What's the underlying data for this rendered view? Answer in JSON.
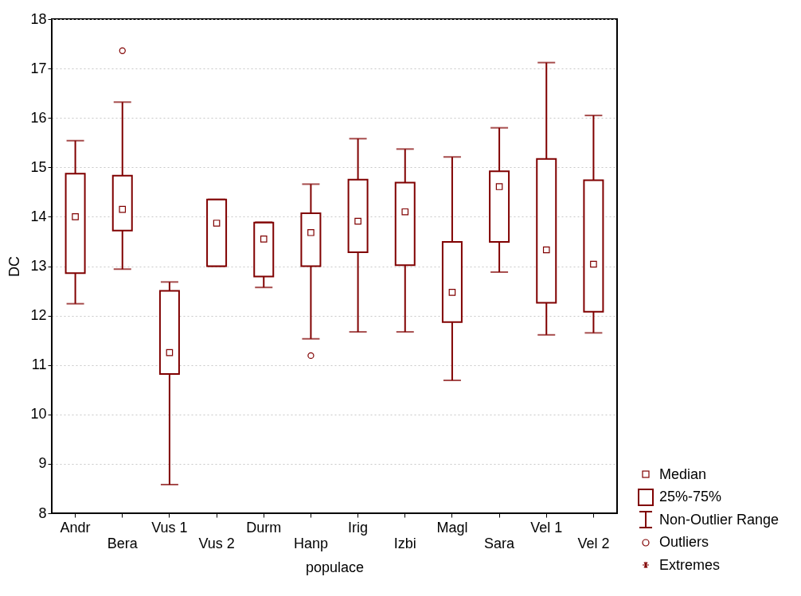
{
  "chart_data": {
    "type": "box",
    "xlabel": "populace",
    "ylabel": "DC",
    "categories": [
      "Andr",
      "Bera",
      "Vus 1",
      "Vus 2",
      "Durm",
      "Hanp",
      "Irig",
      "Izbi",
      "Magl",
      "Sara",
      "Vel 1",
      "Vel 2"
    ],
    "color": "#800000",
    "ylim": [
      8,
      18
    ],
    "yticks": [
      8,
      9,
      10,
      11,
      12,
      13,
      14,
      15,
      16,
      17,
      18
    ],
    "grid": "y",
    "marker": "square",
    "annotations": [
      "Median",
      "25%-75%",
      "Non-Outlier Range",
      "Outliers",
      "Extremes"
    ],
    "boxes": [
      {
        "low": 12.24,
        "q1": 12.86,
        "median": 14.0,
        "q3": 14.87,
        "high": 15.54
      },
      {
        "low": 12.94,
        "q1": 13.72,
        "median": 14.15,
        "q3": 14.83,
        "high": 16.32,
        "outliers": [
          17.36
        ]
      },
      {
        "low": 8.58,
        "q1": 10.82,
        "median": 11.25,
        "q3": 12.5,
        "high": 12.68
      },
      {
        "low": 13.0,
        "q1": 13.0,
        "median": 13.87,
        "q3": 14.35,
        "high": 14.35
      },
      {
        "low": 12.57,
        "q1": 12.79,
        "median": 13.55,
        "q3": 13.88,
        "high": 13.89
      },
      {
        "low": 11.53,
        "q1": 13.0,
        "median": 13.68,
        "q3": 14.07,
        "high": 14.66,
        "outliers": [
          11.19
        ]
      },
      {
        "low": 11.67,
        "q1": 13.28,
        "median": 13.91,
        "q3": 14.75,
        "high": 15.58
      },
      {
        "low": 11.67,
        "q1": 13.02,
        "median": 14.1,
        "q3": 14.69,
        "high": 15.37
      },
      {
        "low": 10.69,
        "q1": 11.87,
        "median": 12.47,
        "q3": 13.49,
        "high": 15.21
      },
      {
        "low": 12.88,
        "q1": 13.49,
        "median": 14.61,
        "q3": 14.92,
        "high": 15.8
      },
      {
        "low": 11.61,
        "q1": 12.26,
        "median": 13.33,
        "q3": 15.17,
        "high": 17.12
      },
      {
        "low": 11.65,
        "q1": 12.08,
        "median": 13.04,
        "q3": 14.74,
        "high": 16.05
      }
    ]
  }
}
